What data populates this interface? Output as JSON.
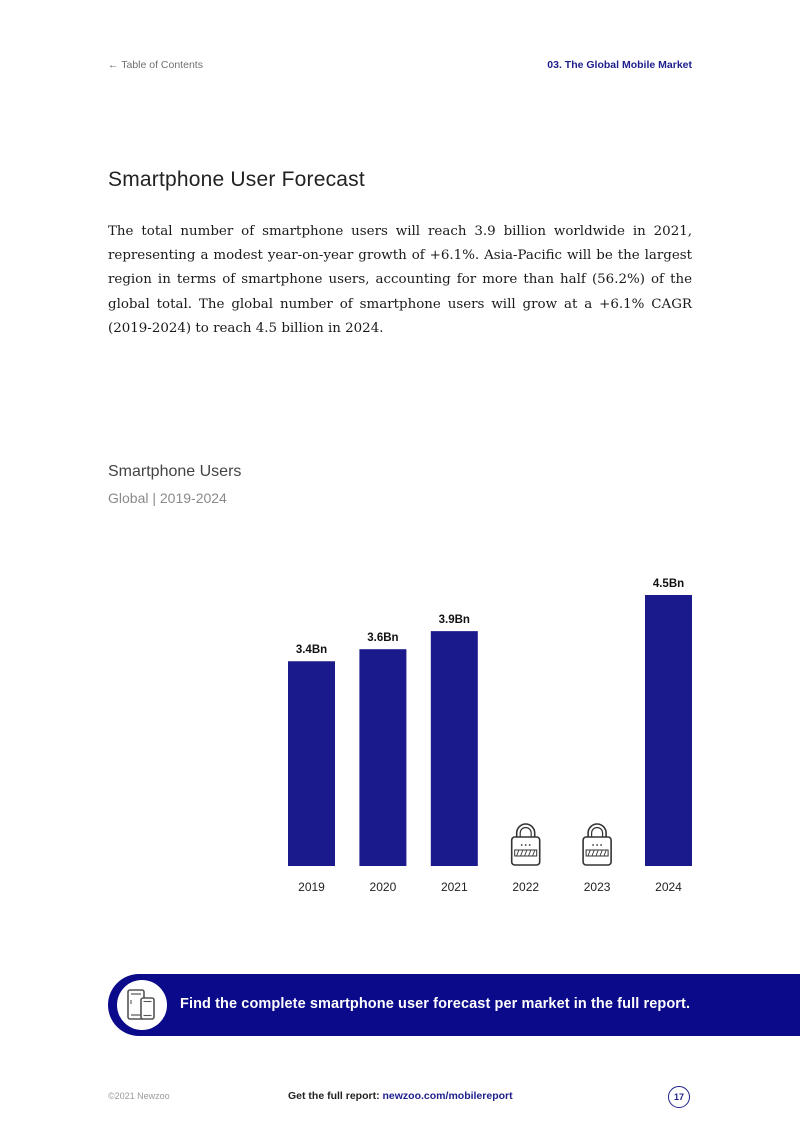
{
  "header": {
    "toc_link": "← Table of Contents",
    "section": "03. The Global Mobile Market"
  },
  "page_title": "Smartphone User Forecast",
  "body_text": "The total number of smartphone users will reach 3.9 billion worldwide in 2021, representing a modest year-on-year growth of +6.1%. Asia-Pacific will be the largest region in terms of smartphone users, accounting for more than half (56.2%) of the global total. The global number of smartphone users will grow at a +6.1% CAGR (2019-2024) to reach 4.5 billion in 2024.",
  "chart_data": {
    "type": "bar",
    "title": "Smartphone Users",
    "subtitle": "Global | 2019-2024",
    "categories": [
      "2019",
      "2020",
      "2021",
      "2022",
      "2023",
      "2024"
    ],
    "values": [
      3.4,
      3.6,
      3.9,
      null,
      null,
      4.5
    ],
    "data_labels": [
      "3.4Bn",
      "3.6Bn",
      "3.9Bn",
      "",
      "",
      "4.5Bn"
    ],
    "locked": [
      false,
      false,
      false,
      true,
      true,
      false
    ],
    "locked_icon": "lock-icon",
    "bar_color": "#1a1a8c",
    "xlabel": "",
    "ylabel": "",
    "ylim": [
      0,
      4.5
    ],
    "grid": false,
    "legend": "none"
  },
  "cta": {
    "icon": "smartphone-tablet-icon",
    "text": "Find the complete smartphone user forecast per market in the full report."
  },
  "footer": {
    "copyright": "©2021 Newzoo",
    "link_prefix": "Get the full report:",
    "link_url": "newzoo.com/mobilereport",
    "page_number": "17"
  },
  "colors": {
    "accent": "#1e1e8c",
    "banner": "#0a0a8a"
  }
}
